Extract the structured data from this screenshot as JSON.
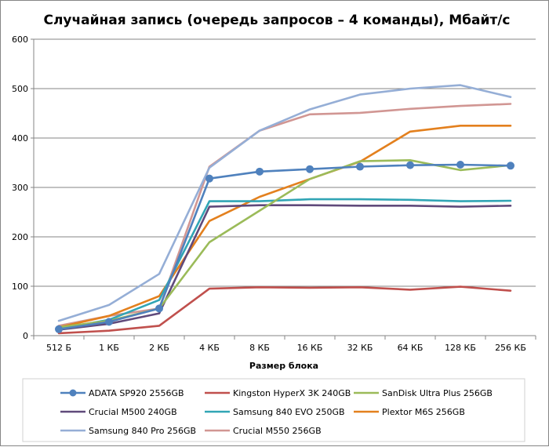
{
  "chart_data": {
    "type": "line",
    "title": "Случайная запись (очередь запросов – 4 команды), Мбайт/с",
    "xlabel": "Размер блока",
    "ylabel": "",
    "categories": [
      "512 Б",
      "1 КБ",
      "2 КБ",
      "4 КБ",
      "8 КБ",
      "16 КБ",
      "32 КБ",
      "64 КБ",
      "128 КБ",
      "256 КБ"
    ],
    "ylim": [
      0,
      600
    ],
    "yticks": [
      0,
      100,
      200,
      300,
      400,
      500,
      600
    ],
    "grid": "horizontal",
    "legend_position": "bottom",
    "series": [
      {
        "name": "ADATA SP920 2556GB",
        "color": "#4F81BD",
        "marker": "circle",
        "values": [
          13,
          28,
          55,
          318,
          332,
          337,
          342,
          345,
          346,
          344
        ]
      },
      {
        "name": "Kingston HyperX 3K 240GB",
        "color": "#C0504D",
        "marker": "none",
        "values": [
          5,
          10,
          20,
          95,
          98,
          97,
          98,
          93,
          99,
          91
        ]
      },
      {
        "name": "SanDisk Ultra Plus 256GB",
        "color": "#9BBB59",
        "marker": "none",
        "values": [
          17,
          30,
          55,
          189,
          253,
          317,
          353,
          355,
          335,
          345
        ]
      },
      {
        "name": "Crucial M500 240GB",
        "color": "#604A7B",
        "marker": "none",
        "values": [
          12,
          24,
          45,
          261,
          264,
          264,
          263,
          263,
          261,
          263
        ]
      },
      {
        "name": "Samsung 840 EVO 250GB",
        "color": "#31A5B5",
        "marker": "none",
        "values": [
          14,
          32,
          72,
          272,
          272,
          276,
          276,
          275,
          272,
          273
        ]
      },
      {
        "name": "Plextor M6S 256GB",
        "color": "#E3801E",
        "marker": "none",
        "values": [
          17,
          40,
          80,
          232,
          281,
          317,
          352,
          413,
          425,
          425
        ]
      },
      {
        "name": "Samsung 840 Pro 256GB",
        "color": "#95AED6",
        "marker": "none",
        "values": [
          30,
          62,
          125,
          340,
          415,
          458,
          488,
          500,
          507,
          483
        ]
      },
      {
        "name": "Crucial M550 256GB",
        "color": "#D19693",
        "marker": "none",
        "values": [
          20,
          40,
          55,
          342,
          415,
          448,
          451,
          459,
          465,
          469
        ]
      }
    ]
  }
}
